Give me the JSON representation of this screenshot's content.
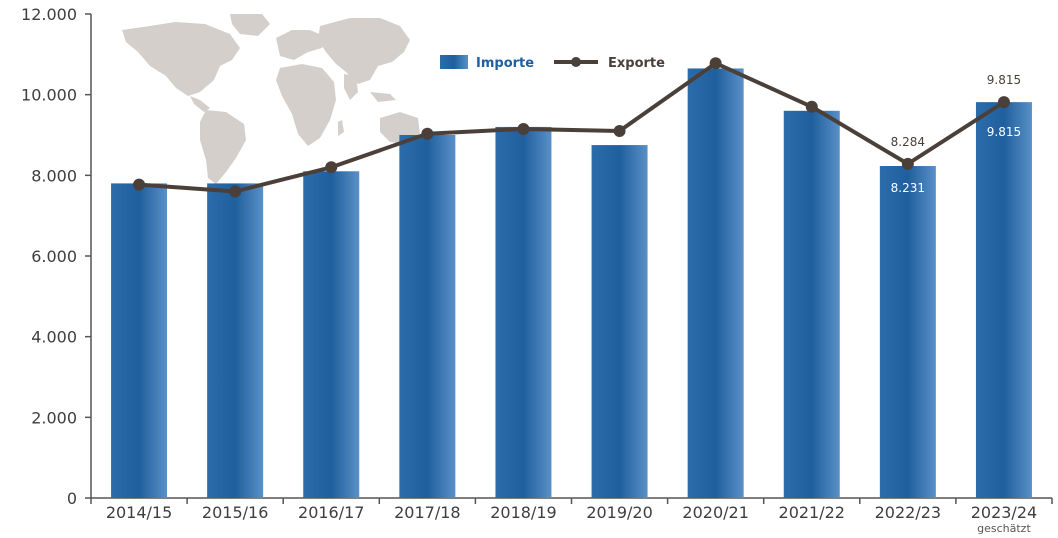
{
  "chart_data": {
    "type": "bar",
    "categories": [
      "2014/15",
      "2015/16",
      "2016/17",
      "2017/18",
      "2018/19",
      "2019/20",
      "2020/21",
      "2021/22",
      "2022/23",
      "2023/24"
    ],
    "category_note": {
      "index": 9,
      "text": "geschätzt"
    },
    "series": [
      {
        "name": "Importe",
        "type": "bar",
        "values": [
          7800,
          7800,
          8100,
          9000,
          9200,
          8750,
          10650,
          9600,
          8231,
          9815
        ]
      },
      {
        "name": "Exporte",
        "type": "line",
        "values": [
          7770,
          7600,
          8200,
          9030,
          9150,
          9100,
          10780,
          9700,
          8284,
          9815
        ]
      }
    ],
    "data_labels": [
      {
        "series": "Importe",
        "index": 8,
        "text": "8.231"
      },
      {
        "series": "Importe",
        "index": 9,
        "text": "9.815"
      },
      {
        "series": "Exporte",
        "index": 8,
        "text": "8.284"
      },
      {
        "series": "Exporte",
        "index": 9,
        "text": "9.815"
      }
    ],
    "y_ticks": [
      "0",
      "2.000",
      "4.000",
      "6.000",
      "8.000",
      "10.000",
      "12.000"
    ],
    "ylim": [
      0,
      12000
    ],
    "legend": "top",
    "grid": false,
    "colors": {
      "bar": "#1f5f9e",
      "bar_light": "#4f86be",
      "line": "#4a4039",
      "legend_importe_text": "#1f5f9e",
      "legend_exporte_text": "#4a4039",
      "axis": "#555555",
      "map": "#d4cfca",
      "bar_label": "#ffffff",
      "line_label": "#4a4039"
    },
    "decoration": "world-map"
  }
}
